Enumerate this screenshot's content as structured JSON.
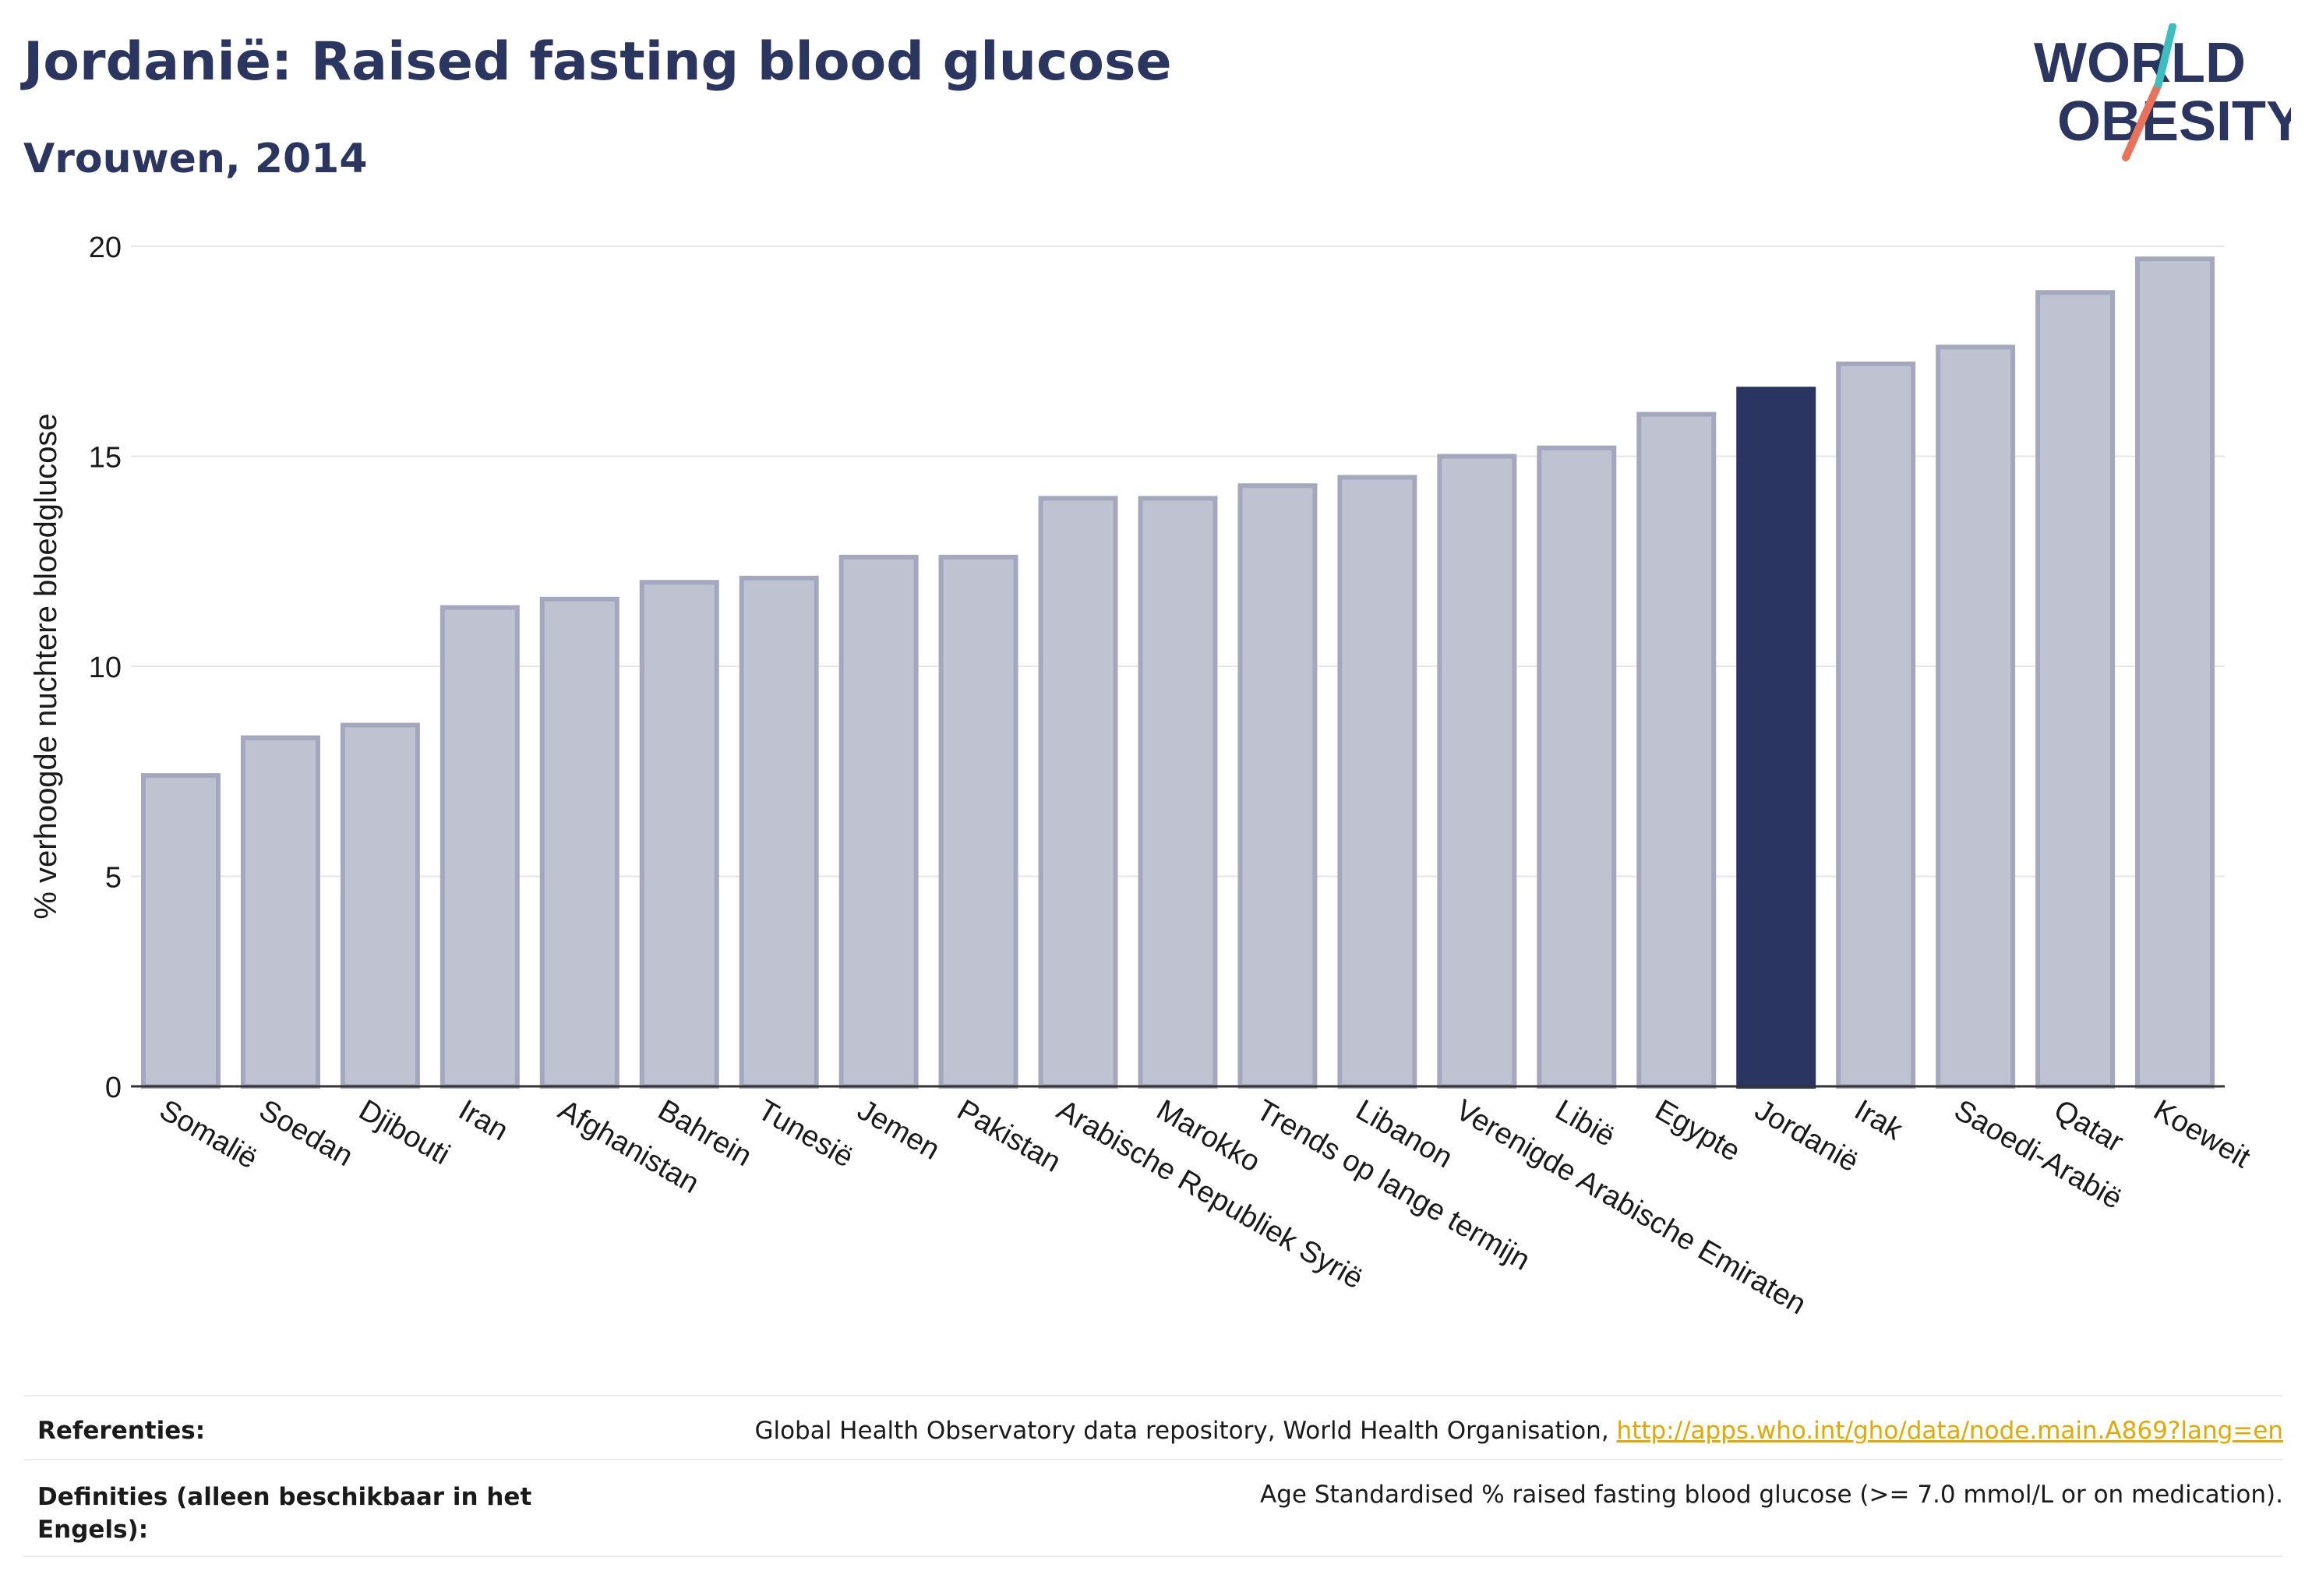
{
  "header": {
    "title": "Jordanië: Raised fasting blood glucose",
    "subtitle": "Vrouwen, 2014"
  },
  "logo": {
    "line1": "WORLD",
    "line2": "OBESITY"
  },
  "colors": {
    "highlight": "#2b3561",
    "bar_fill": "#bfc2d0",
    "bar_stroke": "#a3a8be",
    "grid": "#e6e6e6",
    "link": "#e0a800"
  },
  "chart_data": {
    "type": "bar",
    "ylabel": "% verhoogde nuchtere bloedglucose",
    "xlabel": "",
    "ylim": [
      0,
      20
    ],
    "yticks": [
      0,
      5,
      10,
      15,
      20
    ],
    "grid": true,
    "highlight": "Jordanië",
    "categories": [
      "Somalië",
      "Soedan",
      "Djibouti",
      "Iran",
      "Afghanistan",
      "Bahrein",
      "Tunesië",
      "Jemen",
      "Pakistan",
      "Arabische Republiek Syrië",
      "Marokko",
      "Trends op lange termijn",
      "Libanon",
      "Verenigde Arabische Emiraten",
      "Libië",
      "Egypte",
      "Jordanië",
      "Irak",
      "Saoedi-Arabië",
      "Qatar",
      "Koeweit"
    ],
    "values": [
      7.4,
      8.3,
      8.6,
      11.4,
      11.6,
      12.0,
      12.1,
      12.6,
      12.6,
      14.0,
      14.0,
      14.3,
      14.5,
      15.0,
      15.2,
      16.0,
      16.6,
      17.2,
      17.6,
      18.9,
      19.7
    ]
  },
  "footer": {
    "references_label": "Referenties:",
    "references_text": "Global Health Observatory data repository, World Health Organisation, ",
    "references_link": "http://apps.who.int/gho/data/node.main.A869?lang=en",
    "definitions_label": "Definities (alleen beschikbaar in het Engels):",
    "definitions_text": "Age Standardised % raised fasting blood glucose (>= 7.0 mmol/L or on medication)."
  }
}
